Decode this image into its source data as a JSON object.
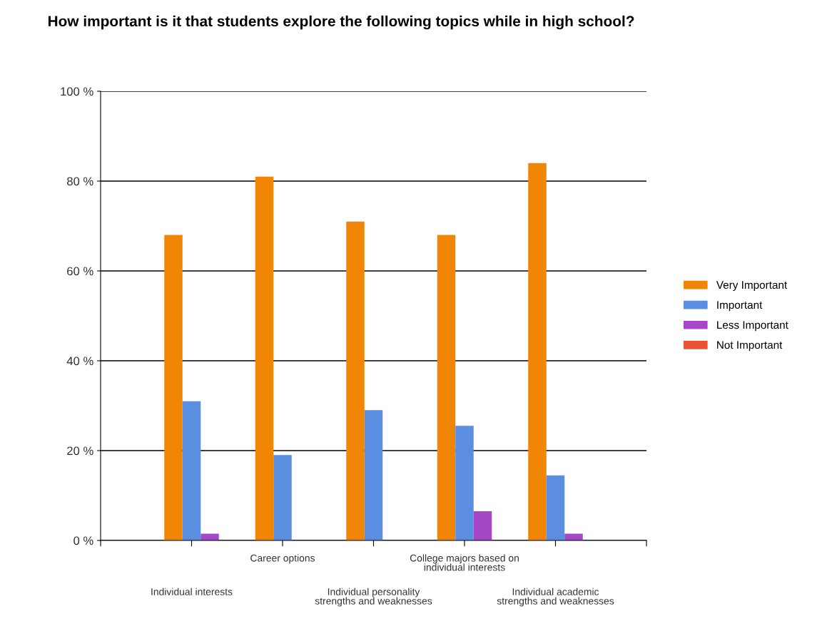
{
  "chart_data": {
    "type": "bar",
    "title": "How important is it that students explore the following topics while in high school?",
    "categories": [
      "Individual interests",
      "Career options",
      "Individual personality\nstrengths and weaknesses",
      "College majors based on\nindividual interests",
      "Individual academic\nstrengths and weaknesses"
    ],
    "series": [
      {
        "name": "Very Important",
        "color": "#f08506",
        "values": [
          68,
          81,
          71,
          68,
          84
        ]
      },
      {
        "name": "Important",
        "color": "#5b8de0",
        "values": [
          31,
          19,
          29,
          25.5,
          14.5
        ]
      },
      {
        "name": "Less Important",
        "color": "#a548c8",
        "values": [
          1.5,
          0,
          0,
          6.5,
          1.5
        ]
      },
      {
        "name": "Not Important",
        "color": "#ea5234",
        "values": [
          0,
          0,
          0,
          0,
          0
        ]
      }
    ],
    "ylim": [
      0,
      100
    ],
    "yticks": [
      {
        "value": 0,
        "label": "0 %"
      },
      {
        "value": 20,
        "label": "20 %"
      },
      {
        "value": 40,
        "label": "40 %"
      },
      {
        "value": 60,
        "label": "60 %"
      },
      {
        "value": 80,
        "label": "80 %"
      },
      {
        "value": 100,
        "label": "100 %"
      }
    ],
    "grid": "y",
    "legend": "right"
  }
}
